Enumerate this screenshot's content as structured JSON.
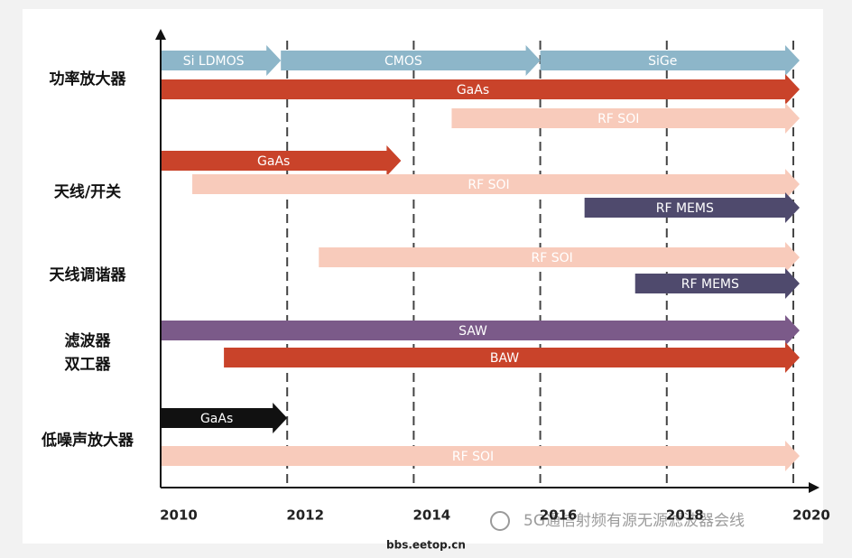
{
  "chart_data": {
    "type": "timeline",
    "xlim": [
      2010,
      2020.3
    ],
    "xticks": [
      2010,
      2012,
      2014,
      2016,
      2018,
      2020
    ],
    "grid": true,
    "groups": [
      [
        "功率放大器"
      ],
      [
        "天线/开关"
      ],
      [
        "天线调谐器"
      ],
      [
        "滤波器",
        "双工器"
      ],
      [
        "低噪声放大器"
      ]
    ],
    "tasks": [
      {
        "label": "Si LDMOS",
        "start": 2010,
        "end": 2011.9,
        "color": "#8db6c9"
      },
      {
        "label": "CMOS",
        "start": 2011.9,
        "end": 2016.0,
        "color": "#8db6c9"
      },
      {
        "label": "SiGe",
        "start": 2016.0,
        "end": 2020.1,
        "color": "#8db6c9"
      },
      {
        "label": "GaAs",
        "start": 2010,
        "end": 2020.1,
        "color": "#c9432a"
      },
      {
        "label": "RF SOI",
        "start": 2014.6,
        "end": 2020.1,
        "color": "#f8cbbb"
      },
      {
        "label": "GaAs",
        "start": 2010,
        "end": 2013.8,
        "color": "#c9432a"
      },
      {
        "label": "RF SOI",
        "start": 2010.5,
        "end": 2020.1,
        "color": "#f8cbbb"
      },
      {
        "label": "RF MEMS",
        "start": 2016.7,
        "end": 2020.1,
        "color": "#4f4a6d"
      },
      {
        "label": "RF SOI",
        "start": 2012.5,
        "end": 2020.1,
        "color": "#f8cbbb"
      },
      {
        "label": "RF MEMS",
        "start": 2017.5,
        "end": 2020.1,
        "color": "#4f4a6d"
      },
      {
        "label": "SAW",
        "start": 2010,
        "end": 2020.1,
        "color": "#7b5a89"
      },
      {
        "label": "BAW",
        "start": 2011.0,
        "end": 2020.1,
        "color": "#c9432a"
      },
      {
        "label": "GaAs",
        "start": 2010,
        "end": 2012.0,
        "color": "#111111"
      },
      {
        "label": "RF SOI",
        "start": 2010,
        "end": 2020.1,
        "color": "#f8cbbb"
      }
    ],
    "watermark": "5G通信射频有源无源滤波器会线",
    "footer": "bbs.eetop.cn"
  }
}
